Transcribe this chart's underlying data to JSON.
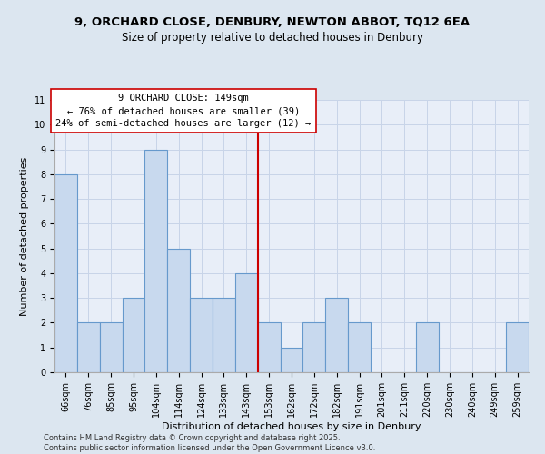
{
  "title_line1": "9, ORCHARD CLOSE, DENBURY, NEWTON ABBOT, TQ12 6EA",
  "title_line2": "Size of property relative to detached houses in Denbury",
  "xlabel": "Distribution of detached houses by size in Denbury",
  "ylabel": "Number of detached properties",
  "categories": [
    "66sqm",
    "76sqm",
    "85sqm",
    "95sqm",
    "104sqm",
    "114sqm",
    "124sqm",
    "133sqm",
    "143sqm",
    "153sqm",
    "162sqm",
    "172sqm",
    "182sqm",
    "191sqm",
    "201sqm",
    "211sqm",
    "220sqm",
    "230sqm",
    "240sqm",
    "249sqm",
    "259sqm"
  ],
  "values": [
    8,
    2,
    2,
    3,
    9,
    5,
    3,
    3,
    4,
    2,
    1,
    2,
    3,
    2,
    0,
    0,
    2,
    0,
    0,
    0,
    2
  ],
  "bar_color": "#c8d9ee",
  "bar_edge_color": "#6699cc",
  "bar_linewidth": 0.8,
  "vline_x_index": 8.5,
  "vline_color": "#cc0000",
  "annotation_text": "9 ORCHARD CLOSE: 149sqm\n← 76% of detached houses are smaller (39)\n24% of semi-detached houses are larger (12) →",
  "annotation_box_color": "#ffffff",
  "annotation_box_edge": "#cc0000",
  "ylim": [
    0,
    11
  ],
  "yticks": [
    0,
    1,
    2,
    3,
    4,
    5,
    6,
    7,
    8,
    9,
    10,
    11
  ],
  "grid_color": "#c8d4e8",
  "background_color": "#dce6f0",
  "plot_bg_color": "#e8eef8",
  "footer": "Contains HM Land Registry data © Crown copyright and database right 2025.\nContains public sector information licensed under the Open Government Licence v3.0.",
  "title_fontsize": 9.5,
  "subtitle_fontsize": 8.5,
  "tick_fontsize": 7,
  "axis_label_fontsize": 8,
  "annotation_fontsize": 7.5,
  "footer_fontsize": 6
}
